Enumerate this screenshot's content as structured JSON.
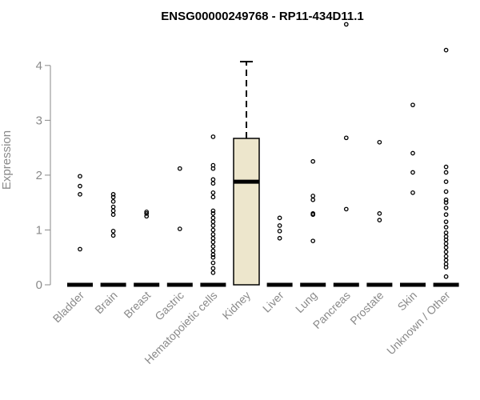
{
  "chart_data": {
    "type": "box",
    "title": "ENSG00000249768 - RP11-434D11.1",
    "xlabel": "",
    "ylabel": "Expression",
    "ylim": [
      0,
      4.8
    ],
    "yticks": [
      0,
      1,
      2,
      3,
      4
    ],
    "colors": {
      "box_fill": "#ede6cc",
      "outline": "#000000",
      "axis": "#8a8a8a"
    },
    "categories": [
      {
        "label": "Bladder",
        "q1": 0,
        "median": 0,
        "q3": 0,
        "whisker_low": 0,
        "whisker_high": 0,
        "outliers": [
          0.65,
          1.65,
          1.8,
          1.98
        ]
      },
      {
        "label": "Brain",
        "q1": 0,
        "median": 0,
        "q3": 0,
        "whisker_low": 0,
        "whisker_high": 0,
        "outliers": [
          0.9,
          0.98,
          1.28,
          1.35,
          1.42,
          1.52,
          1.6,
          1.65
        ]
      },
      {
        "label": "Breast",
        "q1": 0,
        "median": 0,
        "q3": 0,
        "whisker_low": 0,
        "whisker_high": 0,
        "outliers": [
          1.25,
          1.3,
          1.33
        ]
      },
      {
        "label": "Gastric",
        "q1": 0,
        "median": 0,
        "q3": 0,
        "whisker_low": 0,
        "whisker_high": 0,
        "outliers": [
          1.02,
          2.12
        ]
      },
      {
        "label": "Hematopoietic cells",
        "q1": 0,
        "median": 0,
        "q3": 0,
        "whisker_low": 0,
        "whisker_high": 0,
        "outliers": [
          0.22,
          0.3,
          0.4,
          0.5,
          0.55,
          0.62,
          0.7,
          0.78,
          0.85,
          0.92,
          1.0,
          1.08,
          1.15,
          1.22,
          1.3,
          1.35,
          1.6,
          1.68,
          1.85,
          1.92,
          2.12,
          2.18,
          2.7
        ]
      },
      {
        "label": "Kidney",
        "q1": 0,
        "median": 1.88,
        "q3": 2.67,
        "whisker_low": 0,
        "whisker_high": 4.07,
        "outliers": []
      },
      {
        "label": "Liver",
        "q1": 0,
        "median": 0,
        "q3": 0,
        "whisker_low": 0,
        "whisker_high": 0,
        "outliers": [
          0.85,
          0.98,
          1.08,
          1.22
        ]
      },
      {
        "label": "Lung",
        "q1": 0,
        "median": 0,
        "q3": 0,
        "whisker_low": 0,
        "whisker_high": 0,
        "outliers": [
          0.8,
          1.28,
          1.3,
          1.55,
          1.62,
          2.25
        ]
      },
      {
        "label": "Pancreas",
        "q1": 0,
        "median": 0,
        "q3": 0,
        "whisker_low": 0,
        "whisker_high": 0,
        "outliers": [
          1.38,
          2.68,
          4.75
        ]
      },
      {
        "label": "Prostate",
        "q1": 0,
        "median": 0,
        "q3": 0,
        "whisker_low": 0,
        "whisker_high": 0,
        "outliers": [
          1.18,
          1.3,
          2.6
        ]
      },
      {
        "label": "Skin",
        "q1": 0,
        "median": 0,
        "q3": 0,
        "whisker_low": 0,
        "whisker_high": 0,
        "outliers": [
          1.68,
          2.05,
          2.4,
          3.28
        ]
      },
      {
        "label": "Unknown / Other",
        "q1": 0,
        "median": 0,
        "q3": 0,
        "whisker_low": 0,
        "whisker_high": 0,
        "outliers": [
          0.15,
          0.32,
          0.38,
          0.45,
          0.52,
          0.6,
          0.68,
          0.75,
          0.82,
          0.88,
          0.95,
          1.05,
          1.15,
          1.28,
          1.4,
          1.5,
          1.55,
          1.7,
          1.88,
          2.05,
          2.15,
          4.28
        ]
      }
    ]
  }
}
